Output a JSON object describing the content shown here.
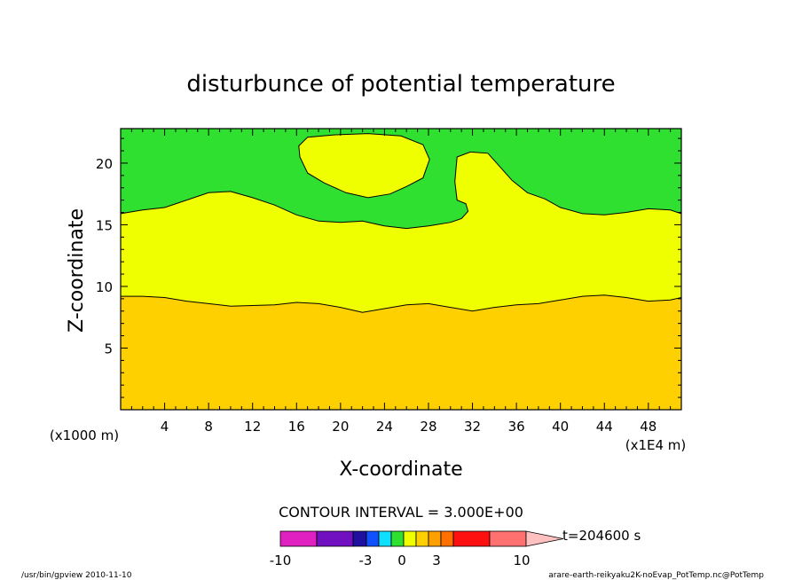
{
  "chart_data": {
    "type": "contour",
    "title": "disturbunce of potential temperature",
    "xlabel": "X-coordinate",
    "ylabel": "Z-coordinate",
    "x_unit_label": "(x1E4 m)",
    "y_unit_label": "(x1000 m)",
    "xlim": [
      0,
      51
    ],
    "ylim": [
      0,
      22.8
    ],
    "x_ticks": [
      4,
      8,
      12,
      16,
      20,
      24,
      28,
      32,
      36,
      40,
      44,
      48
    ],
    "y_ticks": [
      5,
      10,
      15,
      20
    ],
    "contour_interval_text": "CONTOUR INTERVAL = 3.000E+00",
    "time_label": "t=204600 s",
    "regions": [
      {
        "name": "bottom",
        "color": "#ffd000",
        "range": "0-3"
      },
      {
        "name": "middle",
        "color": "#f0ff00",
        "range": "-3-0"
      },
      {
        "name": "top",
        "color": "#30e030",
        "range": "0-3"
      }
    ],
    "contour_lower": [
      [
        0,
        9.2
      ],
      [
        2,
        9.2
      ],
      [
        4,
        9.1
      ],
      [
        6,
        8.8
      ],
      [
        8,
        8.6
      ],
      [
        10,
        8.4
      ],
      [
        12,
        8.45
      ],
      [
        14,
        8.5
      ],
      [
        16,
        8.7
      ],
      [
        18,
        8.6
      ],
      [
        20,
        8.3
      ],
      [
        22,
        7.9
      ],
      [
        24,
        8.2
      ],
      [
        26,
        8.5
      ],
      [
        28,
        8.6
      ],
      [
        30,
        8.3
      ],
      [
        32,
        8.0
      ],
      [
        34,
        8.3
      ],
      [
        36,
        8.5
      ],
      [
        38,
        8.6
      ],
      [
        40,
        8.9
      ],
      [
        42,
        9.2
      ],
      [
        44,
        9.3
      ],
      [
        46,
        9.1
      ],
      [
        48,
        8.8
      ],
      [
        50,
        8.9
      ],
      [
        51,
        9.1
      ]
    ],
    "contour_upper": [
      [
        0,
        15.9
      ],
      [
        2,
        16.2
      ],
      [
        4,
        16.4
      ],
      [
        6,
        17.0
      ],
      [
        8,
        17.6
      ],
      [
        10,
        17.7
      ],
      [
        12,
        17.2
      ],
      [
        14,
        16.6
      ],
      [
        16,
        15.8
      ],
      [
        18,
        15.3
      ],
      [
        20,
        15.2
      ],
      [
        22,
        15.3
      ],
      [
        24,
        14.9
      ],
      [
        26,
        14.7
      ],
      [
        28,
        14.9
      ],
      [
        30,
        15.2
      ],
      [
        31,
        15.5
      ],
      [
        31.6,
        16.1
      ],
      [
        31.4,
        16.7
      ],
      [
        30.6,
        17.0
      ],
      [
        30.4,
        18.5
      ],
      [
        30.6,
        20.5
      ],
      [
        31.8,
        20.9
      ],
      [
        33.4,
        20.8
      ],
      [
        34.4,
        19.8
      ],
      [
        35.6,
        18.6
      ],
      [
        37,
        17.6
      ],
      [
        38.6,
        17.1
      ],
      [
        40,
        16.4
      ],
      [
        42,
        15.9
      ],
      [
        44,
        15.8
      ],
      [
        46,
        16.0
      ],
      [
        48,
        16.3
      ],
      [
        50,
        16.2
      ],
      [
        51,
        15.9
      ]
    ],
    "contour_bubble": [
      [
        16.3,
        20.5
      ],
      [
        16.2,
        21.4
      ],
      [
        17.0,
        22.1
      ],
      [
        19.5,
        22.3
      ],
      [
        22.5,
        22.4
      ],
      [
        25.5,
        22.2
      ],
      [
        27.5,
        21.5
      ],
      [
        28.1,
        20.3
      ],
      [
        27.5,
        18.8
      ],
      [
        26,
        18.1
      ],
      [
        24.5,
        17.5
      ],
      [
        22.5,
        17.2
      ],
      [
        20.5,
        17.6
      ],
      [
        18.5,
        18.4
      ],
      [
        17,
        19.2
      ],
      [
        16.3,
        20.5
      ]
    ],
    "colorbar": {
      "colors": [
        "#e020c0",
        "#7010c0",
        "#2010a0",
        "#1050ff",
        "#10e0ff",
        "#30e030",
        "#f0ff00",
        "#ffd000",
        "#ffa000",
        "#ff7000",
        "#ff1010",
        "#ff7070",
        "#ffc0c0"
      ],
      "tick_labels": [
        "-10",
        "-3",
        "0",
        "3",
        "10"
      ]
    }
  },
  "footer": {
    "left": "/usr/bin/gpview  2010-11-10",
    "right": "arare-earth-reikyaku2K-noEvap_PotTemp.nc@PotTemp"
  }
}
